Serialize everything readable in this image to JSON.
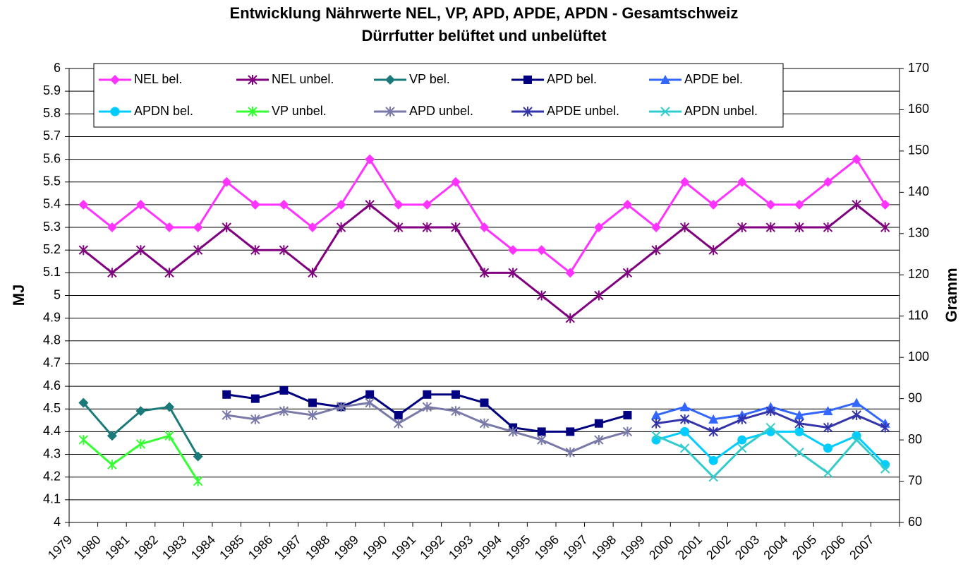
{
  "chart_data": {
    "type": "line",
    "title": "Entwicklung Nährwerte NEL, VP, APD, APDE, APDN - Gesamtschweiz",
    "subtitle": "Dürrfutter belüftet und unbelüftet",
    "y_label": "MJ",
    "y2_label": "Gramm",
    "categories": [
      "1979",
      "1980",
      "1981",
      "1982",
      "1983",
      "1984",
      "1985",
      "1986",
      "1987",
      "1988",
      "1989",
      "1990",
      "1991",
      "1992",
      "1993",
      "1994",
      "1995",
      "1996",
      "1997",
      "1998",
      "1999",
      "2000",
      "2001",
      "2002",
      "2003",
      "2004",
      "2005",
      "2006",
      "2007"
    ],
    "ylim": [
      4,
      6
    ],
    "yticks": [
      4,
      4.1,
      4.2,
      4.3,
      4.4,
      4.5,
      4.6,
      4.7,
      4.8,
      4.9,
      5,
      5.1,
      5.2,
      5.3,
      5.4,
      5.5,
      5.6,
      5.7,
      5.8,
      5.9,
      6
    ],
    "y2lim": [
      60,
      170
    ],
    "y2ticks": [
      60,
      70,
      80,
      90,
      100,
      110,
      120,
      130,
      140,
      150,
      160,
      170
    ],
    "grid": true,
    "legend": "top",
    "series": [
      {
        "name": "NEL bel.",
        "color": "#ff33ff",
        "marker": "diamond",
        "values": [
          5.4,
          5.3,
          5.4,
          5.3,
          5.3,
          5.5,
          5.4,
          5.4,
          5.3,
          5.4,
          5.6,
          5.4,
          5.4,
          5.5,
          5.3,
          5.2,
          5.2,
          5.1,
          5.3,
          5.4,
          5.3,
          5.5,
          5.4,
          5.5,
          5.4,
          5.4,
          5.5,
          5.6,
          5.4
        ]
      },
      {
        "name": "NEL unbel.",
        "color": "#800080",
        "marker": "asterisk",
        "values": [
          5.2,
          5.1,
          5.2,
          5.1,
          5.2,
          5.3,
          5.2,
          5.2,
          5.1,
          5.3,
          5.4,
          5.3,
          5.3,
          5.3,
          5.1,
          5.1,
          5.0,
          4.9,
          5.0,
          5.1,
          5.2,
          5.3,
          5.2,
          5.3,
          5.3,
          5.3,
          5.3,
          5.4,
          5.3
        ]
      },
      {
        "name": "VP bel.",
        "color": "#1a7a7a",
        "marker": "diamond",
        "axis": "y2",
        "values": [
          89,
          81,
          87,
          88,
          76,
          null,
          null,
          null,
          null,
          null,
          null,
          null,
          null,
          null,
          null,
          null,
          null,
          null,
          null,
          null,
          null,
          null,
          null,
          null,
          null,
          null,
          null,
          null,
          null
        ]
      },
      {
        "name": "APD bel.",
        "color": "#000080",
        "marker": "square",
        "axis": "y2",
        "values": [
          null,
          null,
          null,
          null,
          null,
          91,
          90,
          92,
          89,
          88,
          91,
          86,
          91,
          91,
          89,
          83,
          82,
          82,
          84,
          86,
          null,
          null,
          null,
          null,
          null,
          null,
          null,
          null,
          null
        ]
      },
      {
        "name": "APDE bel.",
        "color": "#3366ff",
        "marker": "triangle",
        "axis": "y2",
        "values": [
          null,
          null,
          null,
          null,
          null,
          null,
          null,
          null,
          null,
          null,
          null,
          null,
          null,
          null,
          null,
          null,
          null,
          null,
          null,
          null,
          86,
          88,
          85,
          86,
          88,
          86,
          87,
          89,
          84
        ]
      },
      {
        "name": "APDN bel.",
        "color": "#00ccff",
        "marker": "circle",
        "axis": "y2",
        "values": [
          null,
          null,
          null,
          null,
          null,
          null,
          null,
          null,
          null,
          null,
          null,
          null,
          null,
          null,
          null,
          null,
          null,
          null,
          null,
          null,
          80,
          82,
          75,
          80,
          82,
          82,
          78,
          81,
          74
        ]
      },
      {
        "name": "VP unbel.",
        "color": "#33ff33",
        "marker": "asterisk",
        "axis": "y2",
        "values": [
          80,
          74,
          79,
          81,
          70,
          null,
          null,
          null,
          null,
          null,
          null,
          null,
          null,
          null,
          null,
          null,
          null,
          null,
          null,
          null,
          null,
          null,
          null,
          null,
          null,
          null,
          null,
          null,
          null
        ]
      },
      {
        "name": "APD unbel.",
        "color": "#7a7aaa",
        "marker": "asterisk",
        "axis": "y2",
        "values": [
          null,
          null,
          null,
          null,
          null,
          86,
          85,
          87,
          86,
          88,
          89,
          84,
          88,
          87,
          84,
          82,
          80,
          77,
          80,
          82,
          null,
          null,
          null,
          null,
          null,
          null,
          null,
          null,
          null
        ]
      },
      {
        "name": "APDE unbel.",
        "color": "#3333aa",
        "marker": "asterisk",
        "axis": "y2",
        "values": [
          null,
          null,
          null,
          null,
          null,
          null,
          null,
          null,
          null,
          null,
          null,
          null,
          null,
          null,
          null,
          null,
          null,
          null,
          null,
          null,
          84,
          85,
          82,
          85,
          87,
          84,
          83,
          86,
          83
        ]
      },
      {
        "name": "APDN unbel.",
        "color": "#33cccc",
        "marker": "x",
        "axis": "y2",
        "values": [
          null,
          null,
          null,
          null,
          null,
          null,
          null,
          null,
          null,
          null,
          null,
          null,
          null,
          null,
          null,
          null,
          null,
          null,
          null,
          null,
          81,
          78,
          71,
          78,
          83,
          77,
          72,
          80,
          73
        ]
      }
    ]
  }
}
